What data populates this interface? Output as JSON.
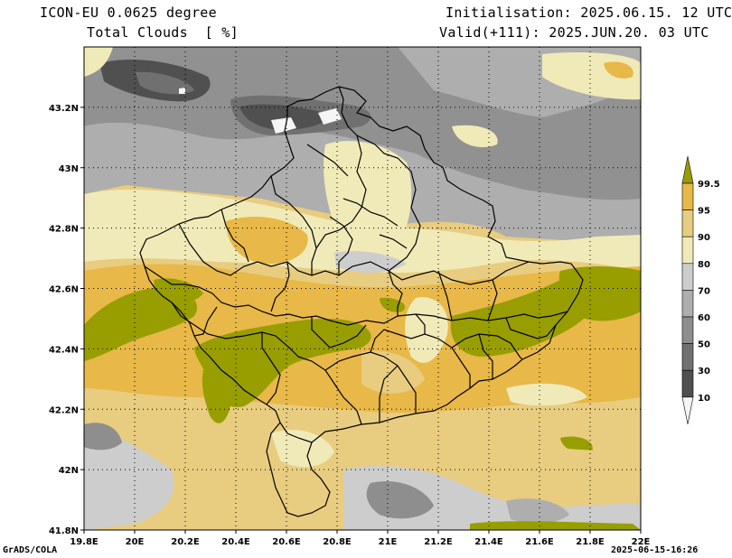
{
  "header": {
    "model": "ICON-EU 0.0625 degree",
    "variable": "Total Clouds  [ %]",
    "initialisation": "Initialisation: 2025.06.15. 12 UTC",
    "valid": "Valid(+111): 2025.JUN.20. 03 UTC"
  },
  "footer": {
    "left": "GrADS/COLA",
    "right": "2025-06-15-16:26"
  },
  "map": {
    "x_ticks": [
      "19.8E",
      "20E",
      "20.2E",
      "20.4E",
      "20.6E",
      "20.8E",
      "21E",
      "21.2E",
      "21.4E",
      "21.6E",
      "21.8E",
      "22E"
    ],
    "y_ticks": [
      "43.2N",
      "43N",
      "42.8N",
      "42.6N",
      "42.4N",
      "42.2N",
      "42N",
      "41.8N"
    ],
    "lon_range": [
      19.8,
      22.0
    ],
    "lat_range": [
      41.8,
      43.4
    ]
  },
  "colorbar": {
    "levels": [
      "99.5",
      "95",
      "90",
      "80",
      "70",
      "60",
      "50",
      "30",
      "10"
    ],
    "colors": {
      "c0_10": "#f5f5f5",
      "c10_30": "#505050",
      "c30_50": "#707070",
      "c50_60": "#8e8e8e",
      "c60_70": "#aeaeae",
      "c70_80": "#cdcdcd",
      "c80_90": "#f0eab8",
      "c90_95": "#e8cc80",
      "c95_99": "#e8b848",
      "c99_100": "#989e00"
    }
  }
}
